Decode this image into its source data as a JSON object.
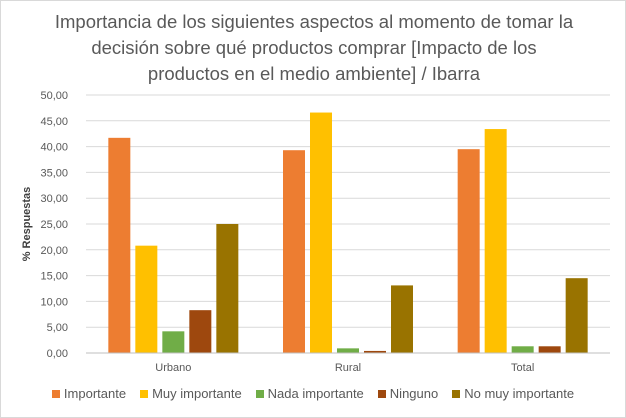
{
  "chart_data": {
    "type": "bar",
    "title": "Importancia de los siguientes aspectos al momento de tomar la decisión sobre qué productos comprar [Impacto de los productos en el medio ambiente] / Ibarra",
    "title_lines": [
      "Importancia de los siguientes aspectos al momento de tomar la",
      "decisión sobre qué productos comprar [Impacto de los",
      "productos en el medio ambiente] / Ibarra"
    ],
    "ylabel": "% Respuestas",
    "xlabel": "",
    "ylim": [
      0,
      50
    ],
    "yticks": [
      "0,00",
      "5,00",
      "10,00",
      "15,00",
      "20,00",
      "25,00",
      "30,00",
      "35,00",
      "40,00",
      "45,00",
      "50,00"
    ],
    "grid": true,
    "legend_position": "bottom",
    "categories": [
      "Urbano",
      "Rural",
      "Total"
    ],
    "series": [
      {
        "name": "Importante",
        "color": "#ED7D31",
        "values": [
          41.7,
          39.3,
          39.5
        ]
      },
      {
        "name": "Muy importante",
        "color": "#FFC000",
        "values": [
          20.8,
          46.6,
          43.4
        ]
      },
      {
        "name": "Nada importante",
        "color": "#70AD47",
        "values": [
          4.2,
          0.9,
          1.3
        ]
      },
      {
        "name": "Ninguno",
        "color": "#9E480E",
        "values": [
          8.3,
          0.4,
          1.3
        ]
      },
      {
        "name": "No muy importante",
        "color": "#997300",
        "values": [
          25.0,
          13.1,
          14.5
        ]
      }
    ]
  }
}
